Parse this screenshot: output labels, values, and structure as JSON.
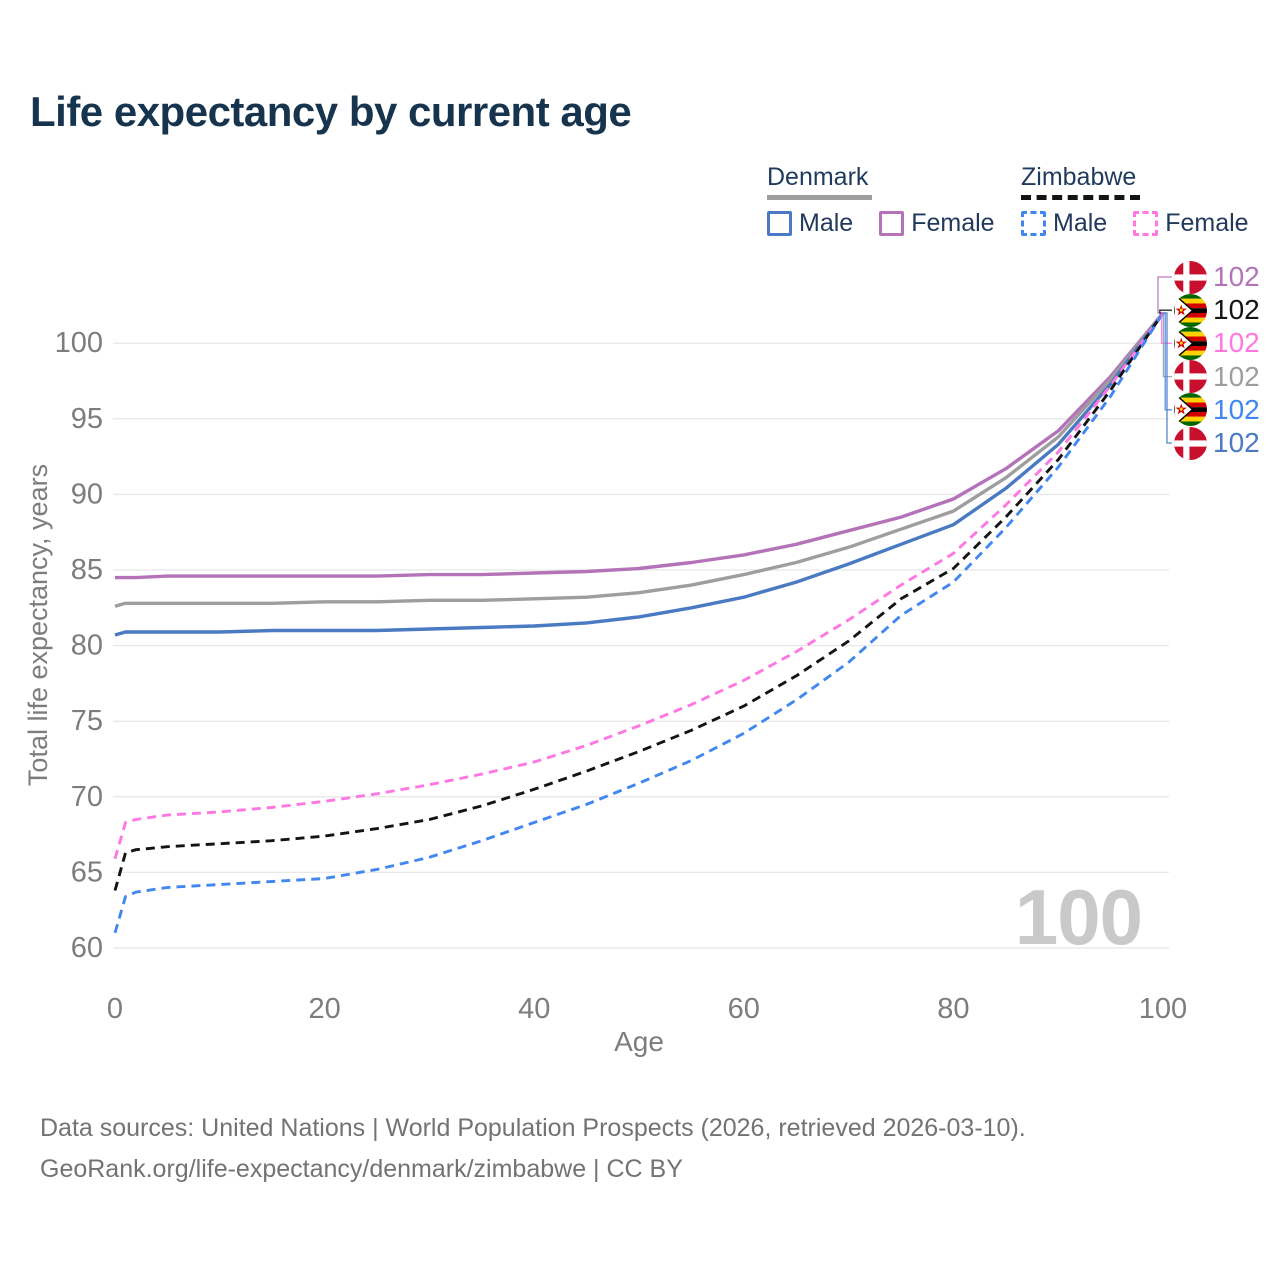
{
  "title": "Life expectancy by current age",
  "legend": {
    "groups": [
      {
        "name": "Denmark",
        "line_style": "solid",
        "line_color": "#9e9e9e",
        "items": [
          {
            "label": "Male",
            "color": "#4a7ac1",
            "dashed": false
          },
          {
            "label": "Female",
            "color": "#b473b8",
            "dashed": false
          }
        ]
      },
      {
        "name": "Zimbabwe",
        "line_style": "dashed",
        "line_color": "#141414",
        "items": [
          {
            "label": "Male",
            "color": "#4287f0",
            "dashed": true
          },
          {
            "label": "Female",
            "color": "#ff77e3",
            "dashed": true
          }
        ]
      }
    ]
  },
  "hover_age_watermark": "100",
  "footer": {
    "line1": "Data sources: United Nations | World Population Prospects (2026, retrieved 2026-03-10).",
    "line2": "GeoRank.org/life-expectancy/denmark/zimbabwe | CC BY"
  },
  "chart_data": {
    "type": "line",
    "title": "Life expectancy by current age",
    "xlabel": "Age",
    "ylabel": "Total life expectancy, years",
    "xlim": [
      0,
      100
    ],
    "ylim": [
      60,
      102
    ],
    "xticks": [
      0,
      20,
      40,
      60,
      80,
      100
    ],
    "yticks": [
      60,
      65,
      70,
      75,
      80,
      85,
      90,
      95,
      100
    ],
    "grid": "horizontal",
    "legend_position": "top-right",
    "ages": [
      0,
      1,
      2,
      5,
      10,
      15,
      20,
      25,
      30,
      35,
      40,
      45,
      50,
      55,
      60,
      65,
      70,
      75,
      80,
      85,
      90,
      95,
      100
    ],
    "series": [
      {
        "name": "Denmark Female",
        "color": "#b473b8",
        "dashed": false,
        "values": [
          84.5,
          84.5,
          84.5,
          84.6,
          84.6,
          84.6,
          84.6,
          84.6,
          84.7,
          84.7,
          84.8,
          84.9,
          85.1,
          85.5,
          86.0,
          86.7,
          87.6,
          88.5,
          89.7,
          91.7,
          94.2,
          97.8,
          102
        ]
      },
      {
        "name": "Denmark Both sexes",
        "color": "#9e9e9e",
        "dashed": false,
        "values": [
          82.6,
          82.8,
          82.8,
          82.8,
          82.8,
          82.8,
          82.9,
          82.9,
          83.0,
          83.0,
          83.1,
          83.2,
          83.5,
          84.0,
          84.7,
          85.5,
          86.5,
          87.7,
          88.9,
          91.1,
          93.8,
          97.6,
          102
        ]
      },
      {
        "name": "Denmark Male",
        "color": "#4a7ac1",
        "dashed": false,
        "values": [
          80.7,
          80.9,
          80.9,
          80.9,
          80.9,
          81.0,
          81.0,
          81.0,
          81.1,
          81.2,
          81.3,
          81.5,
          81.9,
          82.5,
          83.2,
          84.2,
          85.4,
          86.7,
          88.0,
          90.4,
          93.3,
          97.3,
          102
        ]
      },
      {
        "name": "Zimbabwe Female",
        "color": "#ff77e3",
        "dashed": true,
        "values": [
          65.9,
          68.3,
          68.5,
          68.8,
          69.0,
          69.3,
          69.7,
          70.2,
          70.8,
          71.5,
          72.3,
          73.4,
          74.7,
          76.1,
          77.7,
          79.6,
          81.7,
          84.0,
          86.1,
          89.3,
          92.8,
          97.2,
          102
        ]
      },
      {
        "name": "Zimbabwe Both sexes",
        "color": "#141414",
        "dashed": true,
        "values": [
          63.8,
          66.3,
          66.5,
          66.7,
          66.9,
          67.1,
          67.4,
          67.9,
          68.5,
          69.4,
          70.5,
          71.7,
          73.0,
          74.4,
          76.0,
          78.0,
          80.3,
          83.1,
          85.1,
          88.5,
          92.3,
          96.9,
          102
        ]
      },
      {
        "name": "Zimbabwe Male",
        "color": "#4287f0",
        "dashed": true,
        "values": [
          61.0,
          63.4,
          63.7,
          64.0,
          64.2,
          64.4,
          64.6,
          65.2,
          66.0,
          67.1,
          68.3,
          69.5,
          70.9,
          72.4,
          74.2,
          76.4,
          78.9,
          82.0,
          84.2,
          87.8,
          91.8,
          96.5,
          102
        ]
      }
    ],
    "end_labels": [
      {
        "value": "102",
        "color": "#b473b8",
        "flag": "denmark-flag-icon",
        "series": "Denmark Female"
      },
      {
        "value": "102",
        "color": "#141414",
        "flag": "zimbabwe-flag-icon",
        "series": "Zimbabwe Both sexes"
      },
      {
        "value": "102",
        "color": "#ff77e3",
        "flag": "zimbabwe-flag-icon",
        "series": "Zimbabwe Female"
      },
      {
        "value": "102",
        "color": "#9e9e9e",
        "flag": "denmark-flag-icon",
        "series": "Denmark Both sexes"
      },
      {
        "value": "102",
        "color": "#4287f0",
        "flag": "zimbabwe-flag-icon",
        "series": "Zimbabwe Male"
      },
      {
        "value": "102",
        "color": "#4a7ac1",
        "flag": "denmark-flag-icon",
        "series": "Denmark Male"
      }
    ]
  }
}
